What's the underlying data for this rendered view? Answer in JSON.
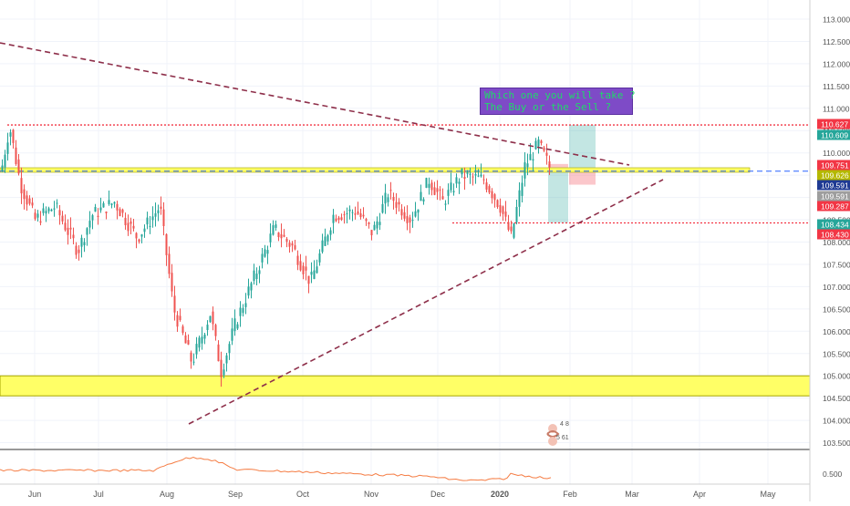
{
  "chart_data": {
    "type": "candlestick",
    "price_axis": {
      "ticks": [
        "113.000",
        "112.500",
        "112.000",
        "111.500",
        "111.000",
        "110.500",
        "110.000",
        "109.500",
        "109.000",
        "108.500",
        "108.000",
        "107.500",
        "107.000",
        "106.500",
        "106.000",
        "105.500",
        "105.000",
        "104.500",
        "104.000",
        "103.500"
      ],
      "range": [
        103.5,
        113.2
      ]
    },
    "indicator_axis": {
      "ticks": [
        "0.500"
      ]
    },
    "time_axis": {
      "labels": [
        "Jun",
        "Jul",
        "Aug",
        "Sep",
        "Oct",
        "Nov",
        "Dec",
        "2020",
        "Feb",
        "Mar",
        "Apr",
        "May"
      ]
    },
    "price_labels": [
      {
        "text": "110.627",
        "value": 110.627,
        "color": "#f23645"
      },
      {
        "text": "110.609",
        "value": 110.609,
        "color": "#26a69a"
      },
      {
        "text": "109.751",
        "value": 109.751,
        "color": "#f23645"
      },
      {
        "text": "109.626",
        "value": 109.626,
        "color": "#b5b800"
      },
      {
        "text": "109.591",
        "value": 109.591,
        "color": "#1f3a93"
      },
      {
        "text": "109.591",
        "value": 109.591,
        "color": "#9e9e9e"
      },
      {
        "text": "109.287",
        "value": 109.287,
        "color": "#f23645"
      },
      {
        "text": "108.434",
        "value": 108.434,
        "color": "#26a69a"
      },
      {
        "text": "108.430",
        "value": 108.43,
        "color": "#f23645"
      }
    ],
    "horizontal_levels": [
      {
        "value": 110.627,
        "style": "red-dotted"
      },
      {
        "value": 108.43,
        "style": "red-dotted"
      },
      {
        "value": 109.626,
        "style": "yellow-band"
      },
      {
        "value": 109.591,
        "style": "blue-dashed"
      }
    ],
    "support_zone": {
      "low": 104.55,
      "high": 105.0,
      "color": "#ffff66"
    },
    "trendlines": [
      {
        "name": "descending",
        "from": [
          "May",
          112.5
        ],
        "to": [
          "Feb",
          109.8
        ],
        "color": "#8e2f4a"
      },
      {
        "name": "ascending",
        "from": [
          "Aug",
          104.0
        ],
        "to": [
          "Feb",
          109.4
        ],
        "color": "#8e2f4a"
      }
    ],
    "candles_approx": [
      {
        "t": "late May",
        "open": 109.7,
        "close": 110.6
      },
      {
        "t": "Jun",
        "open": 109.5,
        "close": 108.9
      },
      {
        "t": "Jul",
        "open": 108.6,
        "close": 108.2
      },
      {
        "t": "Aug",
        "open": 107.0,
        "close": 105.4
      },
      {
        "t": "Sep",
        "open": 105.8,
        "close": 107.9
      },
      {
        "t": "Oct",
        "open": 107.4,
        "close": 108.4
      },
      {
        "t": "Nov",
        "open": 108.7,
        "close": 108.9
      },
      {
        "t": "Dec",
        "open": 109.6,
        "close": 109.1
      },
      {
        "t": "2020",
        "open": 108.1,
        "close": 110.2
      },
      {
        "t": "Jan end",
        "open": 109.9,
        "close": 109.6
      }
    ],
    "annotation": {
      "line1": "Which one you will take ?",
      "line2": "The Buy or the Sell ?"
    },
    "watermark": {
      "top": "4",
      "mid": "8",
      "bottom": "5 61"
    }
  }
}
